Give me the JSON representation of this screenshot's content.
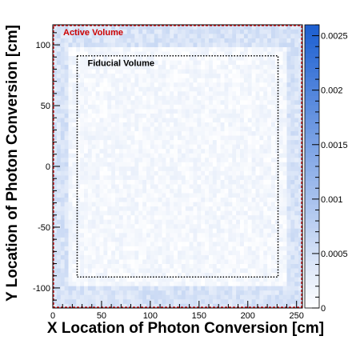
{
  "chart_data": {
    "type": "heatmap",
    "title": "",
    "xlabel": "X Location of Photon Conversion [cm]",
    "ylabel": "Y Location of Photon Conversion [cm]",
    "xlim": [
      0,
      256
    ],
    "ylim": [
      -116.5,
      116.5
    ],
    "x_ticks": [
      0,
      50,
      100,
      150,
      200,
      250
    ],
    "y_ticks": [
      -100,
      -50,
      0,
      50,
      100
    ],
    "grid": false,
    "colorbar": {
      "min": 0,
      "max": 0.0026,
      "ticks": [
        0,
        0.0005,
        0.001,
        0.0015,
        0.002,
        0.0025
      ],
      "tick_labels": [
        "0",
        "0.0005",
        "0.001",
        "0.0015",
        "0.002",
        "0.0025"
      ],
      "color_low": "#ffffff",
      "color_high": "#1c5fd1"
    },
    "binning": {
      "x_bins": 64,
      "y_bins": 64
    },
    "distribution": {
      "edge_band_value": 0.00045,
      "interior_value": 0.00012,
      "noise": 0.00015
    },
    "regions": [
      {
        "name": "Active Volume",
        "x": [
          0,
          256
        ],
        "y": [
          -116.5,
          116.5
        ],
        "color": "#cc0000",
        "style": "dashed"
      },
      {
        "name": "Fiducial Volume",
        "x": [
          25,
          231
        ],
        "y": [
          -91,
          91
        ],
        "color": "#000000",
        "style": "dotted"
      }
    ]
  }
}
